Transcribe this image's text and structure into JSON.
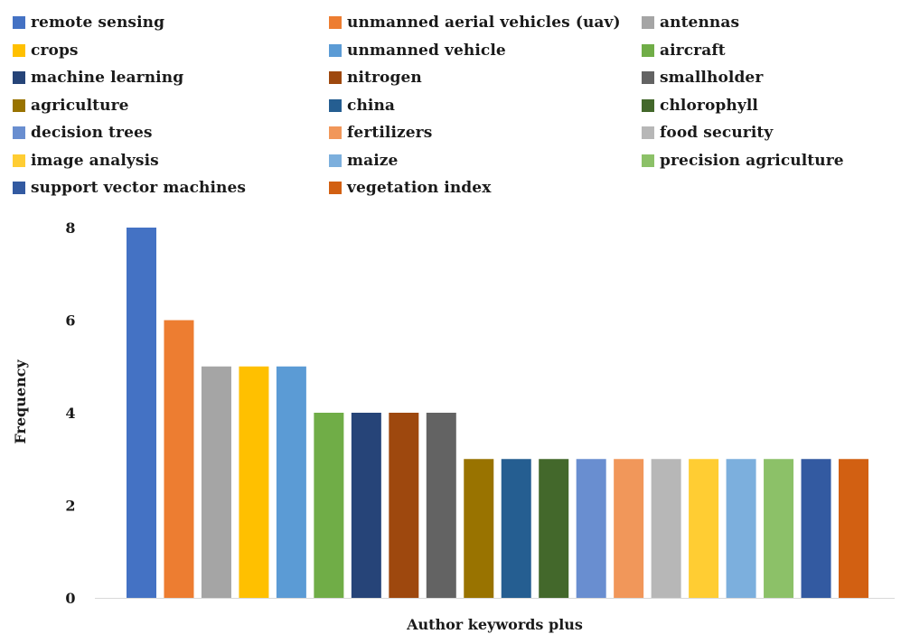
{
  "chart_data": {
    "type": "bar",
    "title": "",
    "xlabel": "Author keywords plus",
    "ylabel": "Frequency",
    "ylim": [
      0,
      8
    ],
    "yticks": [
      0,
      2,
      4,
      6,
      8
    ],
    "grid": false,
    "legend_placement": "top",
    "series": [
      {
        "name": "remote sensing",
        "value": 8,
        "color": "#4472C4"
      },
      {
        "name": "unmanned aerial vehicles (uav)",
        "value": 6,
        "color": "#ED7D31"
      },
      {
        "name": "antennas",
        "value": 5,
        "color": "#A5A5A5"
      },
      {
        "name": "crops",
        "value": 5,
        "color": "#FFC000"
      },
      {
        "name": "unmanned vehicle",
        "value": 5,
        "color": "#5B9BD5"
      },
      {
        "name": "aircraft",
        "value": 4,
        "color": "#70AD47"
      },
      {
        "name": "machine learning",
        "value": 4,
        "color": "#264478"
      },
      {
        "name": "nitrogen",
        "value": 4,
        "color": "#9E480E"
      },
      {
        "name": "smallholder",
        "value": 4,
        "color": "#636363"
      },
      {
        "name": "agriculture",
        "value": 3,
        "color": "#997300"
      },
      {
        "name": "china",
        "value": 3,
        "color": "#255E91"
      },
      {
        "name": "chlorophyll",
        "value": 3,
        "color": "#43682B"
      },
      {
        "name": "decision trees",
        "value": 3,
        "color": "#698ED0"
      },
      {
        "name": "fertilizers",
        "value": 3,
        "color": "#F1975A"
      },
      {
        "name": "food security",
        "value": 3,
        "color": "#B7B7B7"
      },
      {
        "name": "image analysis",
        "value": 3,
        "color": "#FFCD33"
      },
      {
        "name": "maize",
        "value": 3,
        "color": "#7CAFDD"
      },
      {
        "name": "precision agriculture",
        "value": 3,
        "color": "#8CC168"
      },
      {
        "name": "support vector machines",
        "value": 3,
        "color": "#335AA1"
      },
      {
        "name": "vegetation index",
        "value": 3,
        "color": "#D26012"
      }
    ]
  }
}
